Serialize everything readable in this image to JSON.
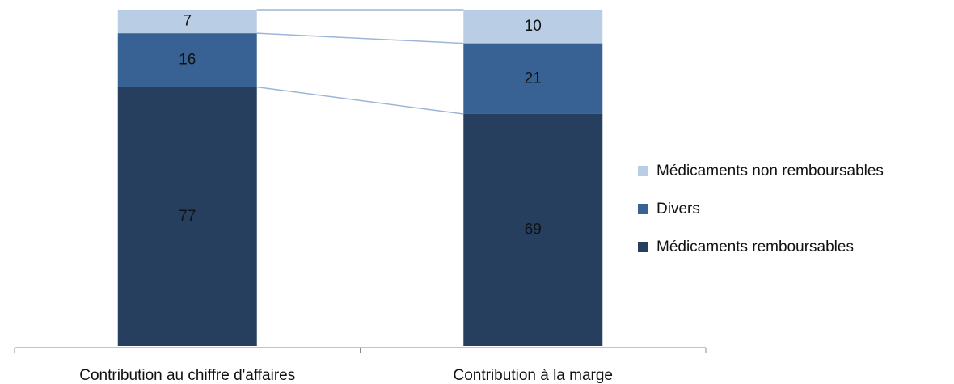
{
  "chart_data": {
    "type": "stacked-bar",
    "categories": [
      "Contribution au chiffre d'affaires",
      "Contribution à la marge"
    ],
    "series": [
      {
        "name": "Médicaments remboursables",
        "color": "#263f5f",
        "values": [
          77,
          69
        ]
      },
      {
        "name": "Divers",
        "color": "#386294",
        "values": [
          16,
          21
        ]
      },
      {
        "name": "Médicaments non remboursables",
        "color": "#b9cde5",
        "values": [
          7,
          10
        ]
      }
    ],
    "legend": "right"
  }
}
